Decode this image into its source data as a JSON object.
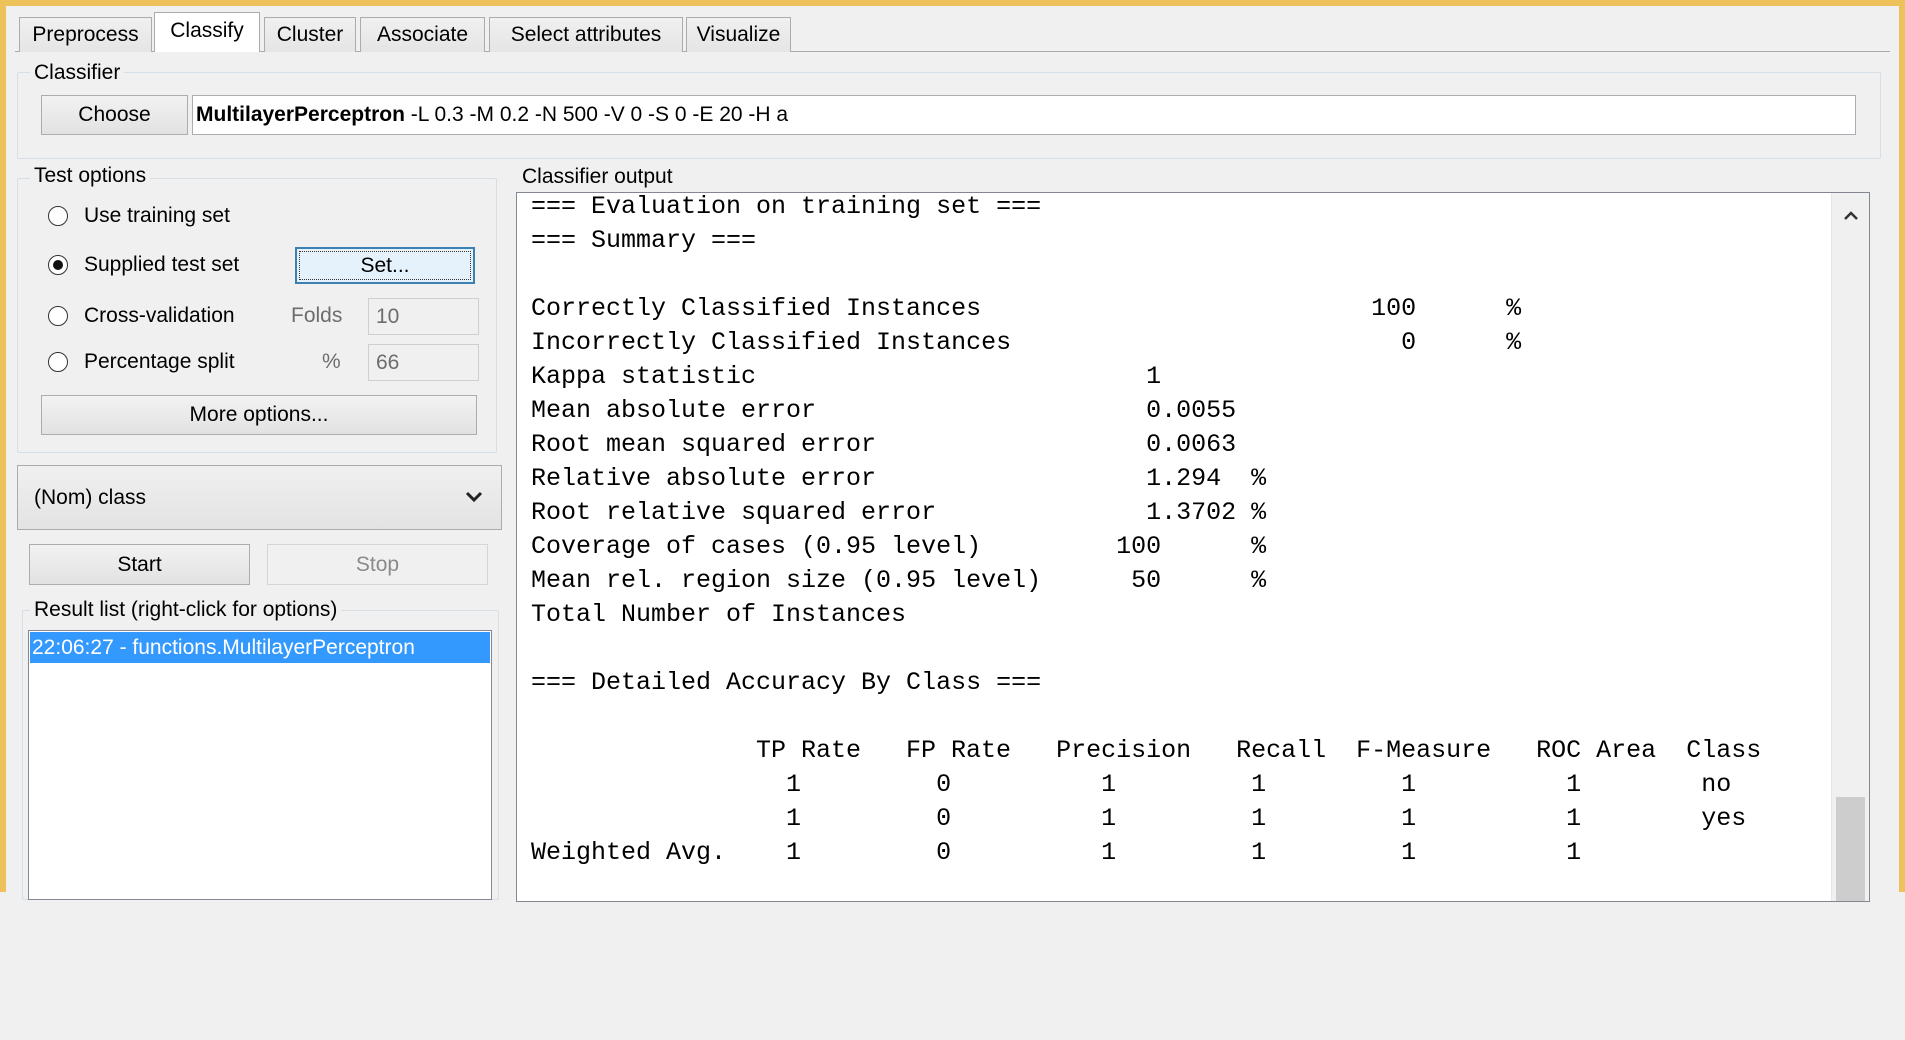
{
  "tabs": [
    "Preprocess",
    "Classify",
    "Cluster",
    "Associate",
    "Select attributes",
    "Visualize"
  ],
  "selected_tab": "Classify",
  "classifier": {
    "group_label": "Classifier",
    "choose_label": "Choose",
    "name": "MultilayerPerceptron",
    "options": " -L 0.3 -M 0.2 -N 500 -V 0 -S 0 -E 20 -H a"
  },
  "test_options": {
    "group_label": "Test options",
    "use_training_set": "Use training set",
    "supplied_test_set": "Supplied test set",
    "set_label": "Set...",
    "cross_validation": "Cross-validation",
    "folds_label": "Folds",
    "folds_value": "10",
    "percentage_split": "Percentage split",
    "percent_label": "%",
    "percent_value": "66",
    "selected": "Supplied test set",
    "more_options": "More options..."
  },
  "class_select": {
    "value": "(Nom) class",
    "icon": "chevron-down-icon"
  },
  "start_label": "Start",
  "stop_label": "Stop",
  "result_list": {
    "label": "Result list (right-click for options)",
    "items": [
      "22:06:27 - functions.MultilayerPerceptron"
    ],
    "selected_color": "#3399ff"
  },
  "output": {
    "label": "Classifier output",
    "eval_header": "=== Evaluation on training set ===",
    "summary_header": "=== Summary ===",
    "summary": [
      {
        "label": "Correctly Classified Instances",
        "value": "100",
        "unit": "%"
      },
      {
        "label": "Incorrectly Classified Instances",
        "value": "0",
        "unit": "%"
      },
      {
        "label": "Kappa statistic",
        "value": "1",
        "unit": ""
      },
      {
        "label": "Mean absolute error",
        "value": "0.0055",
        "unit": ""
      },
      {
        "label": "Root mean squared error",
        "value": "0.0063",
        "unit": ""
      },
      {
        "label": "Relative absolute error",
        "value": "1.294",
        "unit": "%"
      },
      {
        "label": "Root relative squared error",
        "value": "1.3702",
        "unit": "%"
      },
      {
        "label": "Coverage of cases (0.95 level)",
        "value": "100",
        "unit": "%"
      },
      {
        "label": "Mean rel. region size (0.95 level)",
        "value": "50",
        "unit": "%"
      },
      {
        "label": "Total Number of Instances",
        "value": "",
        "unit": ""
      }
    ],
    "detail_header": "=== Detailed Accuracy By Class ===",
    "table": {
      "columns": [
        "TP Rate",
        "FP Rate",
        "Precision",
        "Recall",
        "F-Measure",
        "ROC Area",
        "Class"
      ],
      "rows": [
        [
          "",
          "1",
          "0",
          "1",
          "1",
          "1",
          "1",
          "no"
        ],
        [
          "",
          "1",
          "0",
          "1",
          "1",
          "1",
          "1",
          "yes"
        ],
        [
          "Weighted Avg.",
          "1",
          "0",
          "1",
          "1",
          "1",
          "1",
          ""
        ]
      ]
    }
  }
}
